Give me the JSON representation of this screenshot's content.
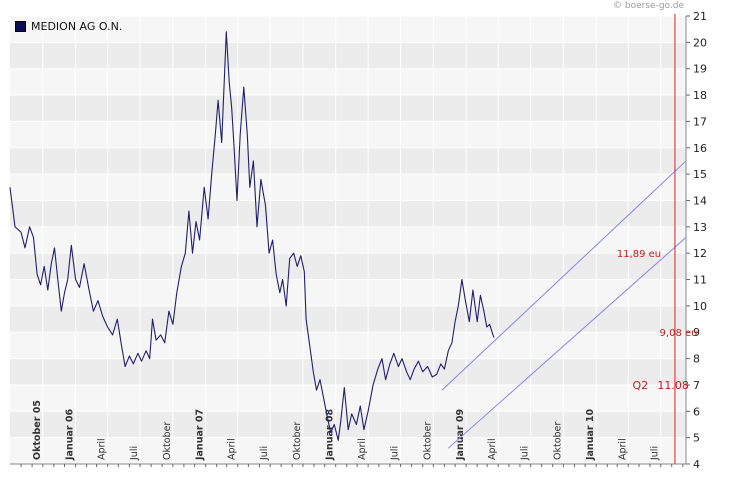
{
  "source_credit": "© boerse-go.de",
  "colors": {
    "price_line": "#1f1f6e",
    "channel": "#8484f0",
    "marker_line": "#d42424",
    "annotation": "#c41c1c",
    "plot_bg": "#ececec",
    "band_bg": "#f6f6f6",
    "grid": "#ffffff"
  },
  "chart_data": {
    "type": "line",
    "title": "",
    "series": [
      {
        "name": "MEDION AG O.N.",
        "points": [
          [
            "2005-07-01",
            14.5
          ],
          [
            "2005-07-15",
            13.0
          ],
          [
            "2005-08-01",
            12.8
          ],
          [
            "2005-08-12",
            12.2
          ],
          [
            "2005-08-25",
            13.0
          ],
          [
            "2005-09-05",
            12.6
          ],
          [
            "2005-09-15",
            11.2
          ],
          [
            "2005-09-25",
            10.8
          ],
          [
            "2005-10-05",
            11.5
          ],
          [
            "2005-10-15",
            10.6
          ],
          [
            "2005-10-25",
            11.6
          ],
          [
            "2005-11-03",
            12.2
          ],
          [
            "2005-11-12",
            11.0
          ],
          [
            "2005-11-22",
            9.8
          ],
          [
            "2005-12-01",
            10.5
          ],
          [
            "2005-12-10",
            11.0
          ],
          [
            "2005-12-20",
            12.3
          ],
          [
            "2006-01-01",
            11.0
          ],
          [
            "2006-01-12",
            10.7
          ],
          [
            "2006-01-25",
            11.6
          ],
          [
            "2006-02-08",
            10.6
          ],
          [
            "2006-02-20",
            9.8
          ],
          [
            "2006-03-05",
            10.2
          ],
          [
            "2006-03-18",
            9.6
          ],
          [
            "2006-04-01",
            9.2
          ],
          [
            "2006-04-15",
            8.9
          ],
          [
            "2006-04-28",
            9.5
          ],
          [
            "2006-05-10",
            8.5
          ],
          [
            "2006-05-20",
            7.7
          ],
          [
            "2006-06-01",
            8.1
          ],
          [
            "2006-06-12",
            7.8
          ],
          [
            "2006-06-25",
            8.2
          ],
          [
            "2006-07-05",
            7.9
          ],
          [
            "2006-07-18",
            8.3
          ],
          [
            "2006-07-28",
            8.0
          ],
          [
            "2006-08-05",
            9.5
          ],
          [
            "2006-08-15",
            8.7
          ],
          [
            "2006-08-28",
            8.9
          ],
          [
            "2006-09-08",
            8.6
          ],
          [
            "2006-09-20",
            9.8
          ],
          [
            "2006-10-01",
            9.3
          ],
          [
            "2006-10-12",
            10.5
          ],
          [
            "2006-10-25",
            11.5
          ],
          [
            "2006-11-05",
            12.0
          ],
          [
            "2006-11-15",
            13.6
          ],
          [
            "2006-11-25",
            12.0
          ],
          [
            "2006-12-05",
            13.2
          ],
          [
            "2006-12-15",
            12.5
          ],
          [
            "2006-12-28",
            14.5
          ],
          [
            "2007-01-08",
            13.3
          ],
          [
            "2007-01-18",
            15.0
          ],
          [
            "2007-01-28",
            16.5
          ],
          [
            "2007-02-05",
            17.8
          ],
          [
            "2007-02-15",
            16.2
          ],
          [
            "2007-02-28",
            20.4
          ],
          [
            "2007-03-08",
            18.5
          ],
          [
            "2007-03-15",
            17.5
          ],
          [
            "2007-03-22",
            16.0
          ],
          [
            "2007-03-30",
            14.0
          ],
          [
            "2007-04-08",
            16.5
          ],
          [
            "2007-04-18",
            18.3
          ],
          [
            "2007-04-28",
            16.5
          ],
          [
            "2007-05-05",
            14.5
          ],
          [
            "2007-05-15",
            15.5
          ],
          [
            "2007-05-25",
            13.0
          ],
          [
            "2007-06-05",
            14.8
          ],
          [
            "2007-06-18",
            13.8
          ],
          [
            "2007-06-28",
            12.0
          ],
          [
            "2007-07-08",
            12.5
          ],
          [
            "2007-07-18",
            11.2
          ],
          [
            "2007-07-28",
            10.5
          ],
          [
            "2007-08-05",
            11.0
          ],
          [
            "2007-08-15",
            10.0
          ],
          [
            "2007-08-25",
            11.8
          ],
          [
            "2007-09-05",
            12.0
          ],
          [
            "2007-09-15",
            11.5
          ],
          [
            "2007-09-25",
            11.9
          ],
          [
            "2007-10-05",
            11.3
          ],
          [
            "2007-10-10",
            9.5
          ],
          [
            "2007-10-20",
            8.5
          ],
          [
            "2007-10-30",
            7.5
          ],
          [
            "2007-11-08",
            6.8
          ],
          [
            "2007-11-18",
            7.2
          ],
          [
            "2007-11-28",
            6.5
          ],
          [
            "2007-12-08",
            5.8
          ],
          [
            "2007-12-18",
            5.2
          ],
          [
            "2007-12-28",
            5.5
          ],
          [
            "2008-01-08",
            4.9
          ],
          [
            "2008-01-15",
            5.6
          ],
          [
            "2008-01-25",
            6.9
          ],
          [
            "2008-02-05",
            5.3
          ],
          [
            "2008-02-15",
            5.9
          ],
          [
            "2008-02-28",
            5.5
          ],
          [
            "2008-03-10",
            6.2
          ],
          [
            "2008-03-20",
            5.3
          ],
          [
            "2008-04-01",
            6.0
          ],
          [
            "2008-04-15",
            7.0
          ],
          [
            "2008-04-28",
            7.6
          ],
          [
            "2008-05-10",
            8.0
          ],
          [
            "2008-05-20",
            7.2
          ],
          [
            "2008-06-01",
            7.8
          ],
          [
            "2008-06-12",
            8.2
          ],
          [
            "2008-06-25",
            7.7
          ],
          [
            "2008-07-05",
            8.0
          ],
          [
            "2008-07-18",
            7.5
          ],
          [
            "2008-07-28",
            7.2
          ],
          [
            "2008-08-08",
            7.6
          ],
          [
            "2008-08-20",
            7.9
          ],
          [
            "2008-09-01",
            7.5
          ],
          [
            "2008-09-15",
            7.7
          ],
          [
            "2008-09-28",
            7.3
          ],
          [
            "2008-10-10",
            7.4
          ],
          [
            "2008-10-22",
            7.8
          ],
          [
            "2008-11-01",
            7.6
          ],
          [
            "2008-11-12",
            8.3
          ],
          [
            "2008-11-22",
            8.6
          ],
          [
            "2008-12-01",
            9.4
          ],
          [
            "2008-12-10",
            10.0
          ],
          [
            "2008-12-20",
            11.0
          ],
          [
            "2008-12-30",
            10.2
          ],
          [
            "2009-01-10",
            9.4
          ],
          [
            "2009-01-20",
            10.6
          ],
          [
            "2009-02-01",
            9.4
          ],
          [
            "2009-02-10",
            10.4
          ],
          [
            "2009-02-20",
            9.8
          ],
          [
            "2009-02-28",
            9.2
          ],
          [
            "2009-03-08",
            9.3
          ],
          [
            "2009-03-15",
            9.0
          ],
          [
            "2009-03-20",
            8.8
          ]
        ]
      }
    ],
    "xlim": [
      "2005-07-01",
      "2010-09-10"
    ],
    "ylim": [
      4,
      21
    ],
    "yticks": [
      4,
      5,
      6,
      7,
      8,
      9,
      10,
      11,
      12,
      13,
      14,
      15,
      16,
      17,
      18,
      19,
      20,
      21
    ],
    "y_axis_position": "right",
    "xtick_labels": [
      {
        "date": "2005-10-01",
        "label": "Oktober 05",
        "bold": true
      },
      {
        "date": "2006-01-01",
        "label": "Januar 06",
        "bold": true
      },
      {
        "date": "2006-04-01",
        "label": "April",
        "bold": false
      },
      {
        "date": "2006-07-01",
        "label": "Juli",
        "bold": false
      },
      {
        "date": "2006-10-01",
        "label": "Oktober",
        "bold": false
      },
      {
        "date": "2007-01-01",
        "label": "Januar 07",
        "bold": true
      },
      {
        "date": "2007-04-01",
        "label": "April",
        "bold": false
      },
      {
        "date": "2007-07-01",
        "label": "Juli",
        "bold": false
      },
      {
        "date": "2007-10-01",
        "label": "Oktober",
        "bold": false
      },
      {
        "date": "2008-01-01",
        "label": "Januar 08",
        "bold": true
      },
      {
        "date": "2008-04-01",
        "label": "April",
        "bold": false
      },
      {
        "date": "2008-07-01",
        "label": "Juli",
        "bold": false
      },
      {
        "date": "2008-10-01",
        "label": "Oktober",
        "bold": false
      },
      {
        "date": "2009-01-01",
        "label": "Januar 09",
        "bold": true
      },
      {
        "date": "2009-04-01",
        "label": "April",
        "bold": false
      },
      {
        "date": "2009-07-01",
        "label": "Juli",
        "bold": false
      },
      {
        "date": "2009-10-01",
        "label": "Oktober",
        "bold": false
      },
      {
        "date": "2010-01-01",
        "label": "Januar 10",
        "bold": true
      },
      {
        "date": "2010-04-01",
        "label": "April",
        "bold": false
      },
      {
        "date": "2010-07-01",
        "label": "Juli",
        "bold": false
      }
    ],
    "trend_channel": [
      {
        "name": "upper",
        "points": [
          [
            "2008-10-25",
            6.8
          ],
          [
            "2010-09-10",
            15.5
          ]
        ]
      },
      {
        "name": "lower",
        "points": [
          [
            "2008-11-12",
            4.6
          ],
          [
            "2010-09-10",
            12.6
          ]
        ]
      }
    ],
    "vertical_marker": {
      "date": "2010-08-10"
    },
    "annotations": [
      {
        "text": "11,89 eu",
        "date": "2010-05-01",
        "y": 12.0
      },
      {
        "text": "9,08 eu",
        "date": "2010-08-20",
        "y": 9.0
      },
      {
        "text": "Q2",
        "date": "2010-05-05",
        "y": 7.0
      },
      {
        "text": "11.08",
        "date": "2010-08-05",
        "y": 7.0
      }
    ],
    "grid": true,
    "legend": "top-left"
  }
}
